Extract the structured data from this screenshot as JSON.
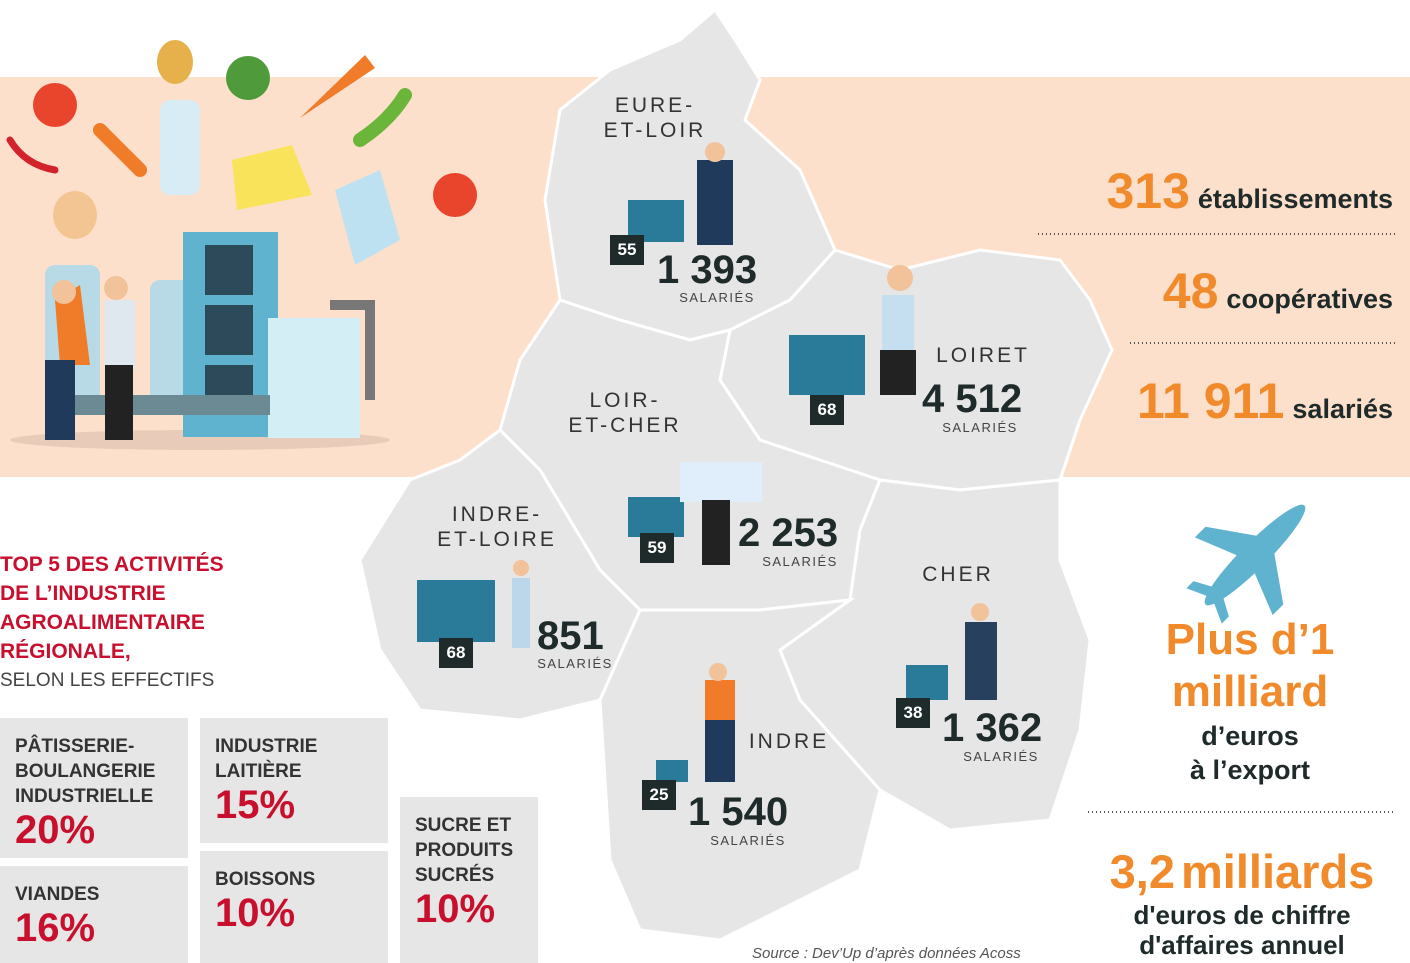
{
  "stats": [
    {
      "value": "313",
      "label": "établissements"
    },
    {
      "value": "48",
      "label": "coopératives"
    },
    {
      "value": "11 911",
      "label": "salariés"
    }
  ],
  "departments": [
    {
      "name": [
        "EURE-",
        "ET-LOIR"
      ],
      "establishments": "55",
      "employees": "1 393",
      "unit": "SALARIÉS"
    },
    {
      "name": [
        "LOIRET"
      ],
      "establishments": "68",
      "employees": "4 512",
      "unit": "SALARIÉS"
    },
    {
      "name": [
        "LOIR-",
        "ET-CHER"
      ],
      "establishments": "59",
      "employees": "2 253",
      "unit": "SALARIÉS"
    },
    {
      "name": [
        "INDRE-",
        "ET-LOIRE"
      ],
      "establishments": "68",
      "employees": "851",
      "unit": "SALARIÉS"
    },
    {
      "name": [
        "CHER"
      ],
      "establishments": "38",
      "employees": "1 362",
      "unit": "SALARIÉS"
    },
    {
      "name": [
        "INDRE"
      ],
      "establishments": "25",
      "employees": "1 540",
      "unit": "SALARIÉS"
    }
  ],
  "top5": {
    "title": [
      "TOP 5 DES ACTIVITÉS",
      "DE L’INDUSTRIE",
      "AGROALIMENTAIRE",
      "RÉGIONALE,"
    ],
    "subtitle": "SELON LES EFFECTIFS",
    "items": [
      {
        "name": [
          "PÂTISSERIE-",
          "BOULANGERIE",
          "INDUSTRIELLE"
        ],
        "share": "20%"
      },
      {
        "name": [
          "INDUSTRIE",
          "LAITIÈRE"
        ],
        "share": "15%"
      },
      {
        "name": [
          "VIANDES"
        ],
        "share": "16%"
      },
      {
        "name": [
          "BOISSONS"
        ],
        "share": "10%"
      },
      {
        "name": [
          "SUCRE ET",
          "PRODUITS",
          "SUCRÉS"
        ],
        "share": "10%"
      }
    ]
  },
  "export": {
    "headline": [
      "Plus d’1",
      "milliard"
    ],
    "text": [
      "d’euros",
      "à l’export"
    ]
  },
  "turnover": {
    "value": "3,2",
    "unit": "milliards",
    "text": [
      "d'euros de chiffre",
      "d'affaires annuel"
    ]
  },
  "source": "Source : Dev’Up d’après données Acoss"
}
